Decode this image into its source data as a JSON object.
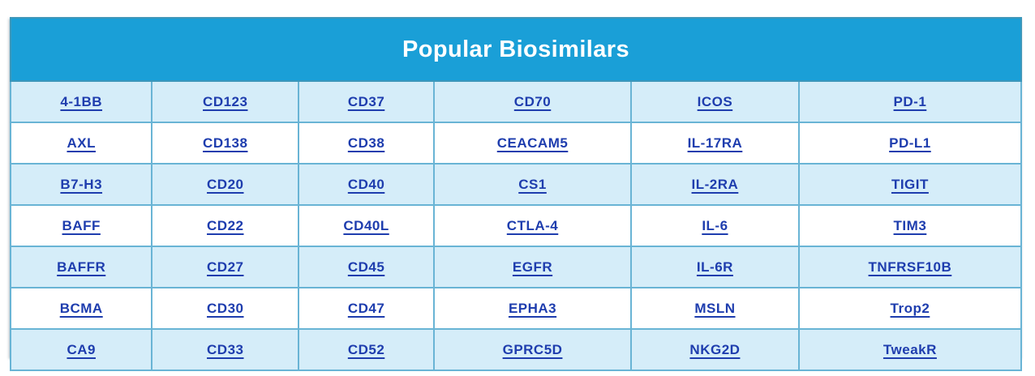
{
  "table": {
    "title": "Popular Biosimilars",
    "rows": [
      [
        "4-1BB",
        "CD123",
        "CD37",
        "CD70",
        "ICOS",
        "PD-1"
      ],
      [
        "AXL",
        "CD138",
        "CD38",
        "CEACAM5",
        "IL-17RA",
        "PD-L1"
      ],
      [
        "B7-H3",
        "CD20",
        "CD40",
        "CS1",
        "IL-2RA",
        "TIGIT"
      ],
      [
        "BAFF",
        "CD22",
        "CD40L",
        "CTLA-4",
        "IL-6",
        "TIM3"
      ],
      [
        "BAFFR",
        "CD27",
        "CD45",
        "EGFR",
        "IL-6R",
        "TNFRSF10B"
      ],
      [
        "BCMA",
        "CD30",
        "CD47",
        "EPHA3",
        "MSLN",
        "Trop2"
      ],
      [
        "CA9",
        "CD33",
        "CD52",
        "GPRC5D",
        "NKG2D",
        "TweakR"
      ]
    ]
  },
  "colors": {
    "header_bg": "#1a9fd7",
    "header_text": "#ffffff",
    "shaded_row_bg": "#d5edf9",
    "plain_row_bg": "#ffffff",
    "link_color": "#1e3dae",
    "inner_border": "#69b4d5",
    "outer_border": "#3d97ba"
  }
}
